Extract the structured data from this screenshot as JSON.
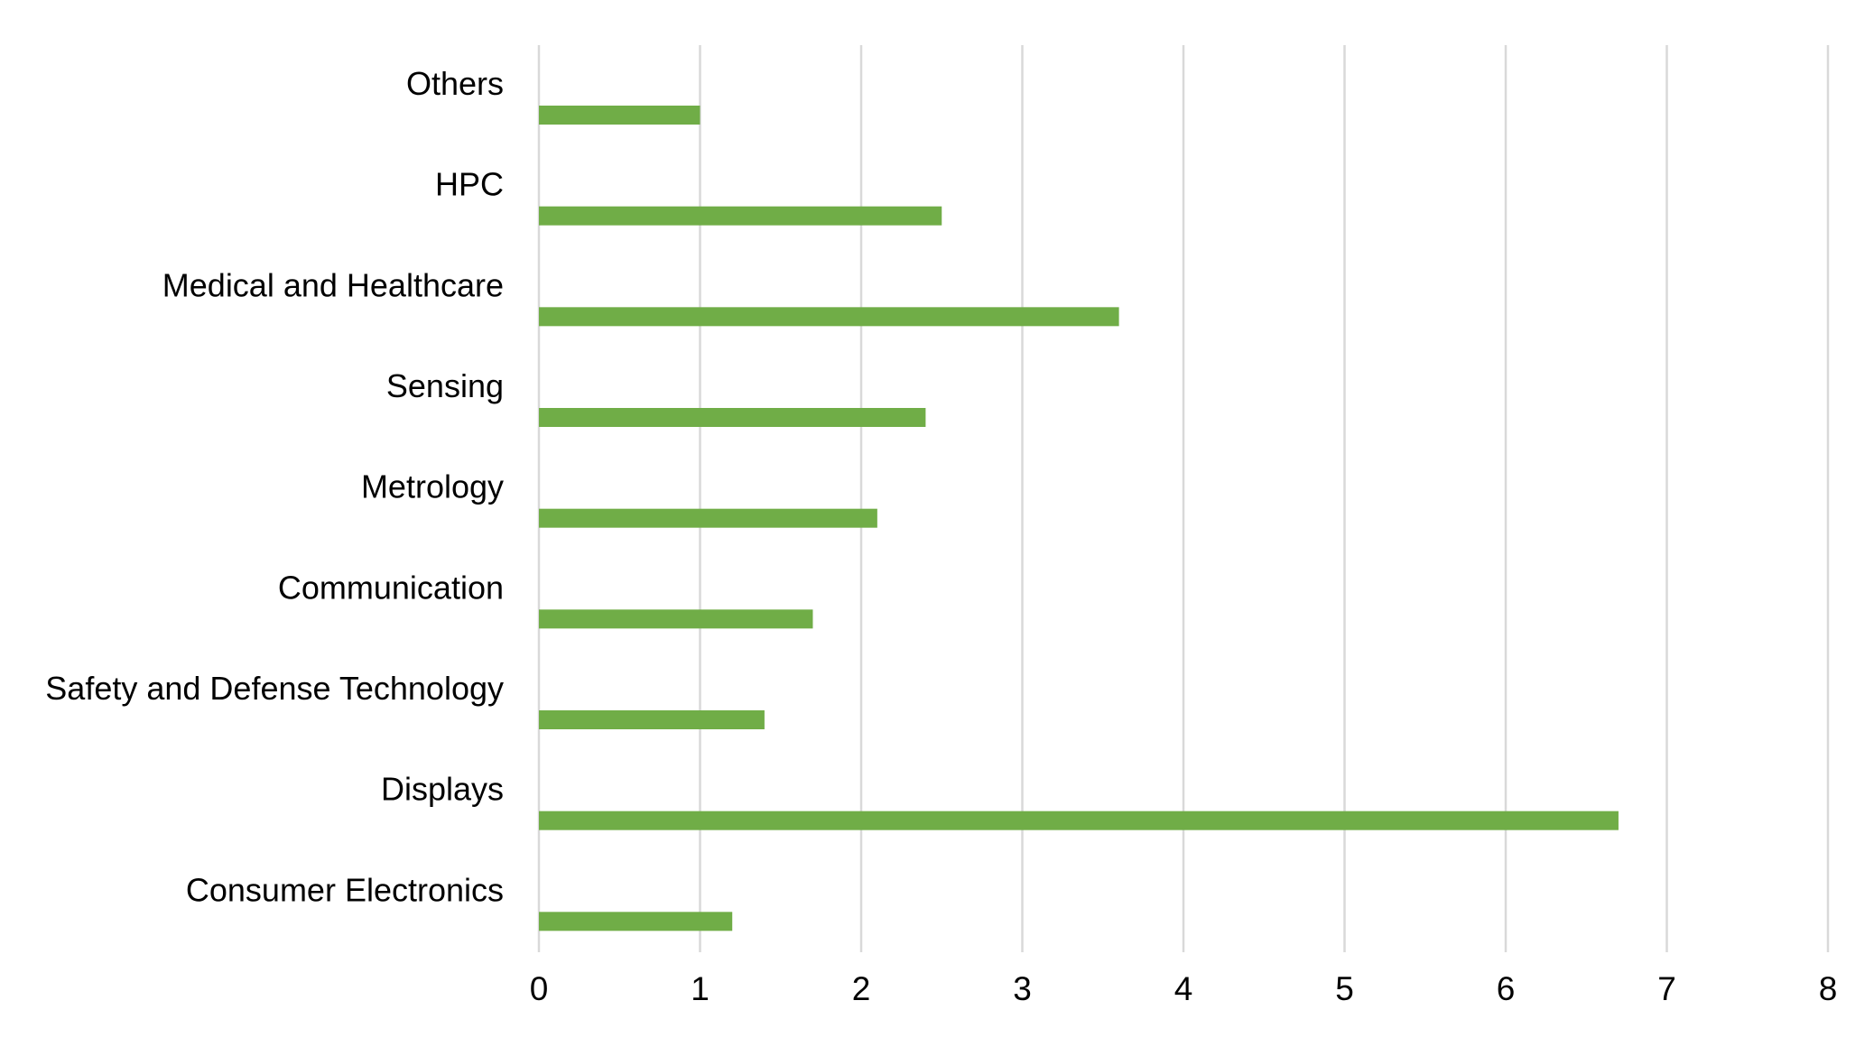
{
  "colors": {
    "bar": "#70AD47",
    "grid": "#D9D9D9",
    "text": "#000000",
    "background": "#FFFFFF"
  },
  "chart_data": {
    "type": "bar",
    "orientation": "horizontal",
    "title": "",
    "xlabel": "",
    "ylabel": "",
    "categories": [
      "Consumer Electronics",
      "Displays",
      "Safety and Defense Technology",
      "Communication",
      "Metrology",
      "Sensing",
      "Medical and Healthcare",
      "HPC",
      "Others"
    ],
    "values": [
      1.2,
      6.7,
      1.4,
      1.7,
      2.1,
      2.4,
      3.6,
      2.5,
      1.0
    ],
    "xlim": [
      0,
      8
    ],
    "xticks": [
      0,
      1,
      2,
      3,
      4,
      5,
      6,
      7,
      8
    ],
    "grid": "vertical",
    "legend": "none"
  }
}
